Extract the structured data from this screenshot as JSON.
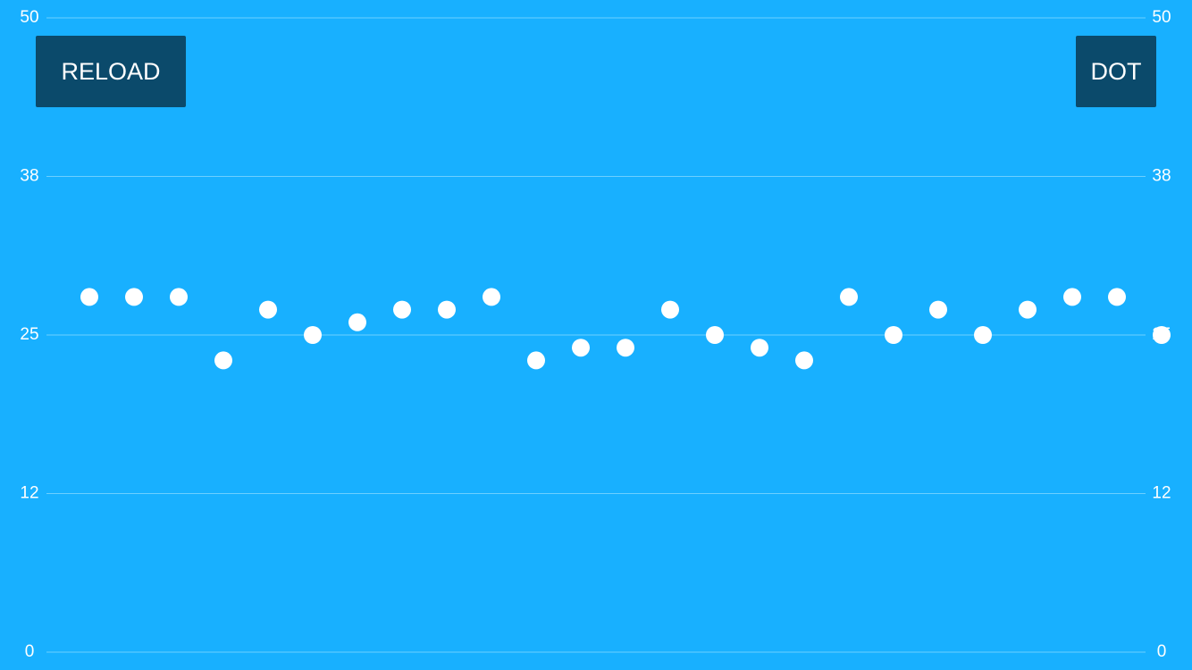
{
  "buttons": [
    "RELOAD",
    "DOT"
  ],
  "chart_data": {
    "type": "scatter",
    "color": "#ffffff",
    "grid": true,
    "values": [
      28,
      28,
      28,
      23,
      27,
      25,
      26,
      27,
      27,
      28,
      23,
      24,
      24,
      27,
      25,
      24,
      23,
      28,
      25,
      27,
      25,
      27,
      28,
      28,
      25
    ],
    "ylim": [
      0,
      50
    ],
    "yticks": [
      0,
      {
        "value": 12.5,
        "label": "12"
      },
      25,
      {
        "value": 37.5,
        "label": "38"
      },
      50
    ],
    "y2lim": [
      0,
      50
    ],
    "y2ticks": [
      0,
      {
        "value": 12.5,
        "label": "12"
      },
      25,
      {
        "value": 37.5,
        "label": "38"
      },
      50
    ]
  }
}
